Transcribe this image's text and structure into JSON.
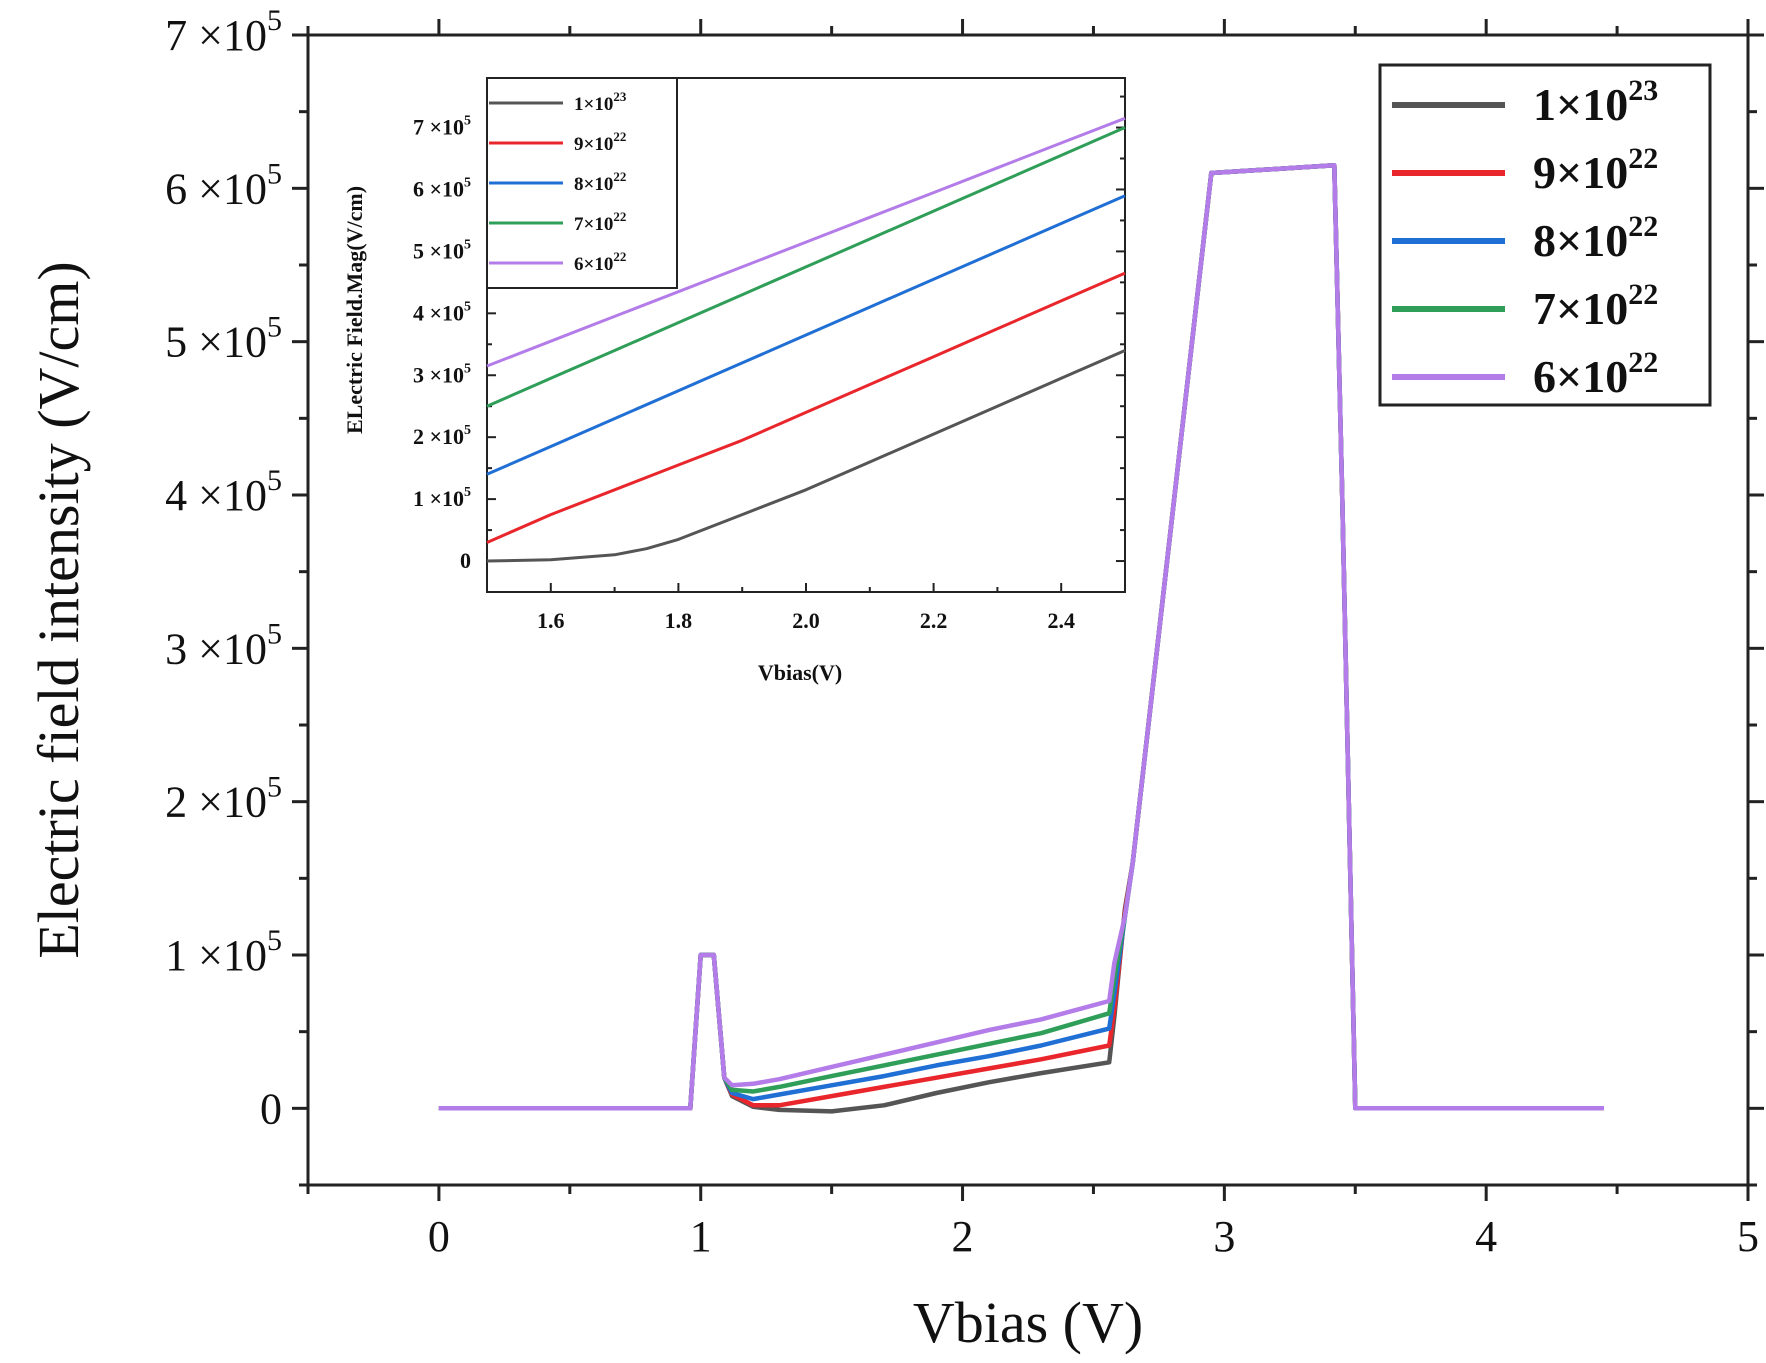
{
  "chart_data": [
    {
      "type": "line",
      "panel": "main",
      "xlabel": "Vbias (V)",
      "ylabel": "Electric field intensity (V/cm)",
      "xlim": [
        -0.5,
        5
      ],
      "ylim": [
        -50000,
        700000
      ],
      "x_ticks": [
        {
          "value": 0,
          "label": "0"
        },
        {
          "value": 1,
          "label": "1"
        },
        {
          "value": 2,
          "label": "2"
        },
        {
          "value": 3,
          "label": "3"
        },
        {
          "value": 4,
          "label": "4"
        },
        {
          "value": 5,
          "label": "5"
        }
      ],
      "y_ticks": [
        {
          "value": 0,
          "mant": "0",
          "exp": ""
        },
        {
          "value": 100000,
          "mant": "1 ×10",
          "exp": "5"
        },
        {
          "value": 200000,
          "mant": "2 ×10",
          "exp": "5"
        },
        {
          "value": 300000,
          "mant": "3 ×10",
          "exp": "5"
        },
        {
          "value": 400000,
          "mant": "4 ×10",
          "exp": "5"
        },
        {
          "value": 500000,
          "mant": "5 ×10",
          "exp": "5"
        },
        {
          "value": 600000,
          "mant": "6 ×10",
          "exp": "5"
        },
        {
          "value": 700000,
          "mant": "7 ×10",
          "exp": "5"
        }
      ],
      "legend_position": "top-right",
      "series": [
        {
          "name": "1×10",
          "exp": "23",
          "color": "#555555",
          "x": [
            0,
            0.96,
            1.0,
            1.05,
            1.09,
            1.12,
            1.2,
            1.3,
            1.5,
            1.7,
            1.9,
            2.1,
            2.3,
            2.56,
            2.58,
            2.62,
            2.65,
            2.95,
            3.42,
            3.45,
            3.5,
            4.45
          ],
          "y": [
            0,
            0,
            100000,
            100000,
            20000,
            8000,
            1000,
            -1000,
            -2000,
            2000,
            10000,
            17000,
            23000,
            30000,
            60000,
            130000,
            160000,
            610000,
            615000,
            400000,
            0,
            0
          ]
        },
        {
          "name": "9×10",
          "exp": "22",
          "color": "#e8262b",
          "x": [
            0,
            0.96,
            1.0,
            1.05,
            1.09,
            1.12,
            1.2,
            1.3,
            1.5,
            1.7,
            1.9,
            2.1,
            2.3,
            2.56,
            2.58,
            2.62,
            2.65,
            2.95,
            3.42,
            3.45,
            3.5,
            4.45
          ],
          "y": [
            0,
            0,
            100000,
            100000,
            20000,
            9000,
            2000,
            2000,
            8000,
            14000,
            20000,
            26000,
            32000,
            41000,
            65000,
            128000,
            160000,
            610000,
            615000,
            400000,
            0,
            0
          ]
        },
        {
          "name": "8×10",
          "exp": "22",
          "color": "#1f6fd4",
          "x": [
            0,
            0.96,
            1.0,
            1.05,
            1.09,
            1.12,
            1.2,
            1.3,
            1.5,
            1.7,
            1.9,
            2.1,
            2.3,
            2.56,
            2.58,
            2.62,
            2.65,
            2.95,
            3.42,
            3.45,
            3.5,
            4.45
          ],
          "y": [
            0,
            0,
            100000,
            100000,
            20000,
            10000,
            6000,
            9000,
            15000,
            21000,
            28000,
            34000,
            41000,
            52000,
            75000,
            125000,
            160000,
            610000,
            615000,
            400000,
            0,
            0
          ]
        },
        {
          "name": "7×10",
          "exp": "22",
          "color": "#2e9e58",
          "x": [
            0,
            0.96,
            1.0,
            1.05,
            1.09,
            1.12,
            1.2,
            1.3,
            1.5,
            1.7,
            1.9,
            2.1,
            2.3,
            2.56,
            2.58,
            2.62,
            2.65,
            2.95,
            3.42,
            3.45,
            3.5,
            4.45
          ],
          "y": [
            0,
            0,
            100000,
            100000,
            20000,
            12000,
            11000,
            14000,
            21000,
            28000,
            35000,
            42000,
            49000,
            62000,
            85000,
            125000,
            160000,
            610000,
            615000,
            400000,
            0,
            0
          ]
        },
        {
          "name": "6×10",
          "exp": "22",
          "color": "#b37ce8",
          "x": [
            0,
            0.96,
            1.0,
            1.05,
            1.09,
            1.12,
            1.2,
            1.3,
            1.5,
            1.7,
            1.9,
            2.1,
            2.3,
            2.56,
            2.58,
            2.62,
            2.65,
            2.95,
            3.42,
            3.45,
            3.5,
            4.45
          ],
          "y": [
            0,
            0,
            100000,
            100000,
            20000,
            15000,
            16000,
            19000,
            27000,
            35000,
            43000,
            51000,
            58000,
            70000,
            95000,
            125000,
            160000,
            610000,
            615000,
            400000,
            0,
            0
          ]
        }
      ]
    },
    {
      "type": "line",
      "panel": "inset",
      "xlabel": "Vbias(V)",
      "ylabel": "ELectric Field.Mag(V/cm)",
      "xlim": [
        1.5,
        2.5
      ],
      "ylim": [
        -50000,
        780000
      ],
      "x_ticks": [
        {
          "value": 1.6,
          "label": "1.6"
        },
        {
          "value": 1.8,
          "label": "1.8"
        },
        {
          "value": 2.0,
          "label": "2.0"
        },
        {
          "value": 2.2,
          "label": "2.2"
        },
        {
          "value": 2.4,
          "label": "2.4"
        }
      ],
      "y_ticks": [
        {
          "value": 0,
          "mant": "0",
          "exp": ""
        },
        {
          "value": 100000,
          "mant": "1 ×10",
          "exp": "5"
        },
        {
          "value": 200000,
          "mant": "2 ×10",
          "exp": "5"
        },
        {
          "value": 300000,
          "mant": "3 ×10",
          "exp": "5"
        },
        {
          "value": 400000,
          "mant": "4 ×10",
          "exp": "5"
        },
        {
          "value": 500000,
          "mant": "5 ×10",
          "exp": "5"
        },
        {
          "value": 600000,
          "mant": "6 ×10",
          "exp": "5"
        },
        {
          "value": 700000,
          "mant": "7 ×10",
          "exp": "5"
        }
      ],
      "legend_position": "top-left",
      "series": [
        {
          "name": "1×10",
          "exp": "23",
          "color": "#555555",
          "x": [
            1.5,
            1.6,
            1.7,
            1.75,
            1.8,
            1.85,
            1.9,
            1.95,
            2.0,
            2.1,
            2.2,
            2.3,
            2.4,
            2.5
          ],
          "y": [
            0,
            2000,
            10000,
            20000,
            35000,
            55000,
            75000,
            95000,
            115000,
            160000,
            205000,
            250000,
            295000,
            340000
          ]
        },
        {
          "name": "9×10",
          "exp": "22",
          "color": "#e8262b",
          "x": [
            1.5,
            1.6,
            1.7,
            1.8,
            1.9,
            2.0,
            2.1,
            2.2,
            2.3,
            2.4,
            2.5
          ],
          "y": [
            30000,
            75000,
            115000,
            155000,
            195000,
            240000,
            285000,
            330000,
            375000,
            420000,
            465000
          ]
        },
        {
          "name": "8×10",
          "exp": "22",
          "color": "#1f6fd4",
          "x": [
            1.5,
            1.6,
            1.7,
            1.8,
            1.9,
            2.0,
            2.1,
            2.2,
            2.3,
            2.4,
            2.5
          ],
          "y": [
            140000,
            185000,
            230000,
            275000,
            320000,
            365000,
            410000,
            455000,
            500000,
            545000,
            590000
          ]
        },
        {
          "name": "7×10",
          "exp": "22",
          "color": "#2e9e58",
          "x": [
            1.5,
            1.6,
            1.7,
            1.8,
            1.9,
            2.0,
            2.1,
            2.2,
            2.3,
            2.4,
            2.5
          ],
          "y": [
            250000,
            295000,
            340000,
            385000,
            430000,
            475000,
            520000,
            565000,
            610000,
            655000,
            700000
          ]
        },
        {
          "name": "6×10",
          "exp": "22",
          "color": "#b37ce8",
          "x": [
            1.5,
            1.6,
            1.7,
            1.8,
            1.9,
            2.0,
            2.1,
            2.2,
            2.3,
            2.4,
            2.5
          ],
          "y": [
            315000,
            355000,
            395000,
            435000,
            475000,
            515000,
            555000,
            595000,
            635000,
            675000,
            715000
          ]
        }
      ]
    }
  ]
}
